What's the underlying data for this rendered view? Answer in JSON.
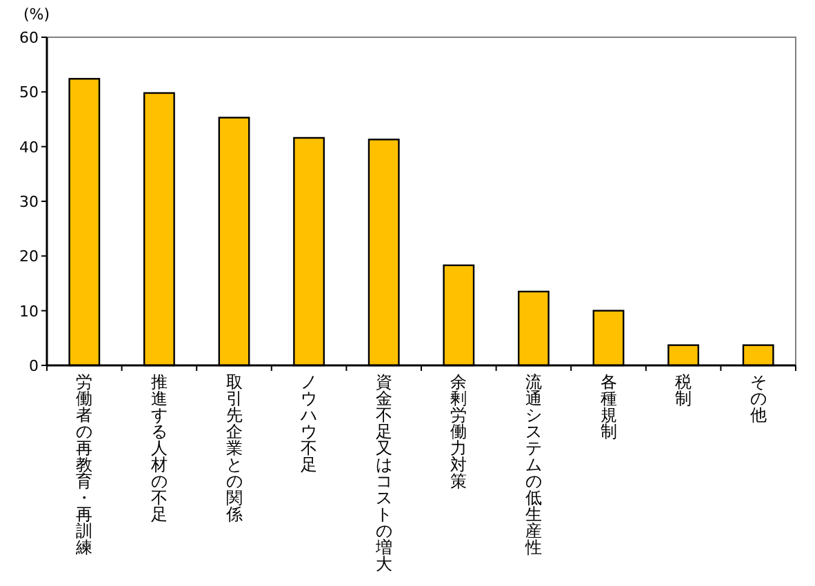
{
  "chart_data": {
    "type": "bar",
    "ylabel": "(%)",
    "categories": [
      "労働者の再教育・再訓練",
      "推進する人材の不足",
      "取引先企業との関係",
      "ノウハウ不足",
      "資金不足又はコストの増大",
      "余剰労働力対策",
      "流通システムの低生産性",
      "各種規制",
      "税制",
      "その他"
    ],
    "values": [
      52.4,
      49.8,
      45.3,
      41.6,
      41.3,
      18.3,
      13.5,
      10.0,
      3.7,
      3.7
    ],
    "color": "#ffc000",
    "ylim": [
      0,
      60
    ],
    "yticks": [
      0,
      10,
      20,
      30,
      40,
      50,
      60
    ],
    "grid": false
  }
}
